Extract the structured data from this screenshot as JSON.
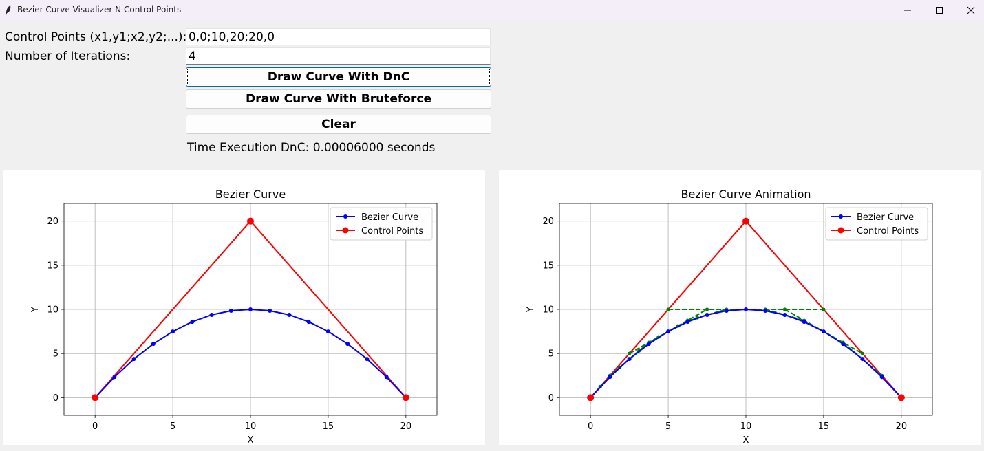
{
  "window": {
    "title": "Bezier Curve Visualizer N Control Points"
  },
  "form": {
    "control_points_label": "Control Points (x1,y1;x2,y2;...):",
    "control_points_value": "0,0;10,20;20,0",
    "iterations_label": "Number of Iterations:",
    "iterations_value": "4",
    "dnc_button": "Draw Curve With DnC",
    "bruteforce_button": "Draw Curve With Bruteforce",
    "clear_button": "Clear",
    "time_text": "Time Execution DnC: 0.00006000 seconds"
  },
  "colors": {
    "curve": "#0000ff",
    "control": "#ff0000",
    "intermediate": "#008000",
    "grid": "#b0b0b0"
  },
  "chart_data": [
    {
      "type": "line",
      "title": "Bezier Curve",
      "xlabel": "X",
      "ylabel": "Y",
      "xlim": [
        -2,
        22
      ],
      "ylim": [
        -2,
        22
      ],
      "xticks": [
        "0",
        "5",
        "10",
        "15",
        "20"
      ],
      "yticks": [
        "0",
        "5",
        "10",
        "15",
        "20"
      ],
      "grid": true,
      "legend_position": "top-right",
      "series": [
        {
          "name": "Bezier Curve",
          "points": [
            [
              0,
              0
            ],
            [
              1.25,
              2.34
            ],
            [
              2.5,
              4.38
            ],
            [
              3.75,
              6.09
            ],
            [
              5,
              7.5
            ],
            [
              6.25,
              8.59
            ],
            [
              7.5,
              9.38
            ],
            [
              8.75,
              9.84
            ],
            [
              10,
              10
            ],
            [
              11.25,
              9.84
            ],
            [
              12.5,
              9.38
            ],
            [
              13.75,
              8.59
            ],
            [
              15,
              7.5
            ],
            [
              16.25,
              6.09
            ],
            [
              17.5,
              4.38
            ],
            [
              18.75,
              2.34
            ],
            [
              20,
              0
            ]
          ]
        },
        {
          "name": "Control Points",
          "points": [
            [
              0,
              0
            ],
            [
              10,
              20
            ],
            [
              20,
              0
            ]
          ]
        }
      ]
    },
    {
      "type": "line",
      "title": "Bezier Curve Animation",
      "xlabel": "X",
      "ylabel": "Y",
      "xlim": [
        -2,
        22
      ],
      "ylim": [
        -2,
        22
      ],
      "xticks": [
        "0",
        "5",
        "10",
        "15",
        "20"
      ],
      "yticks": [
        "0",
        "5",
        "10",
        "15",
        "20"
      ],
      "grid": true,
      "legend_position": "top-right",
      "series": [
        {
          "name": "Bezier Curve",
          "points": [
            [
              0,
              0
            ],
            [
              1.25,
              2.34
            ],
            [
              2.5,
              4.38
            ],
            [
              3.75,
              6.09
            ],
            [
              5,
              7.5
            ],
            [
              6.25,
              8.59
            ],
            [
              7.5,
              9.38
            ],
            [
              8.75,
              9.84
            ],
            [
              10,
              10
            ],
            [
              11.25,
              9.84
            ],
            [
              12.5,
              9.38
            ],
            [
              13.75,
              8.59
            ],
            [
              15,
              7.5
            ],
            [
              16.25,
              6.09
            ],
            [
              17.5,
              4.38
            ],
            [
              18.75,
              2.34
            ],
            [
              20,
              0
            ]
          ]
        },
        {
          "name": "Control Points",
          "points": [
            [
              0,
              0
            ],
            [
              10,
              20
            ],
            [
              20,
              0
            ]
          ]
        }
      ],
      "intermediate_lines": [
        [
          [
            5,
            10
          ],
          [
            15,
            10
          ]
        ],
        [
          [
            2.5,
            5
          ],
          [
            7.5,
            10
          ]
        ],
        [
          [
            12.5,
            10
          ],
          [
            17.5,
            5
          ]
        ],
        [
          [
            1.25,
            2.5
          ],
          [
            3.75,
            6.25
          ]
        ],
        [
          [
            6.25,
            8.75
          ],
          [
            8.75,
            10
          ]
        ],
        [
          [
            11.25,
            10
          ],
          [
            13.75,
            8.75
          ]
        ],
        [
          [
            16.25,
            6.25
          ],
          [
            18.75,
            2.5
          ]
        ],
        [
          [
            0.625,
            1.25
          ],
          [
            1.875,
            3.4375
          ]
        ],
        [
          [
            3.125,
            5.3125
          ],
          [
            4.375,
            6.875
          ]
        ],
        [
          [
            5.625,
            8.125
          ],
          [
            6.875,
            9.0625
          ]
        ]
      ]
    }
  ]
}
